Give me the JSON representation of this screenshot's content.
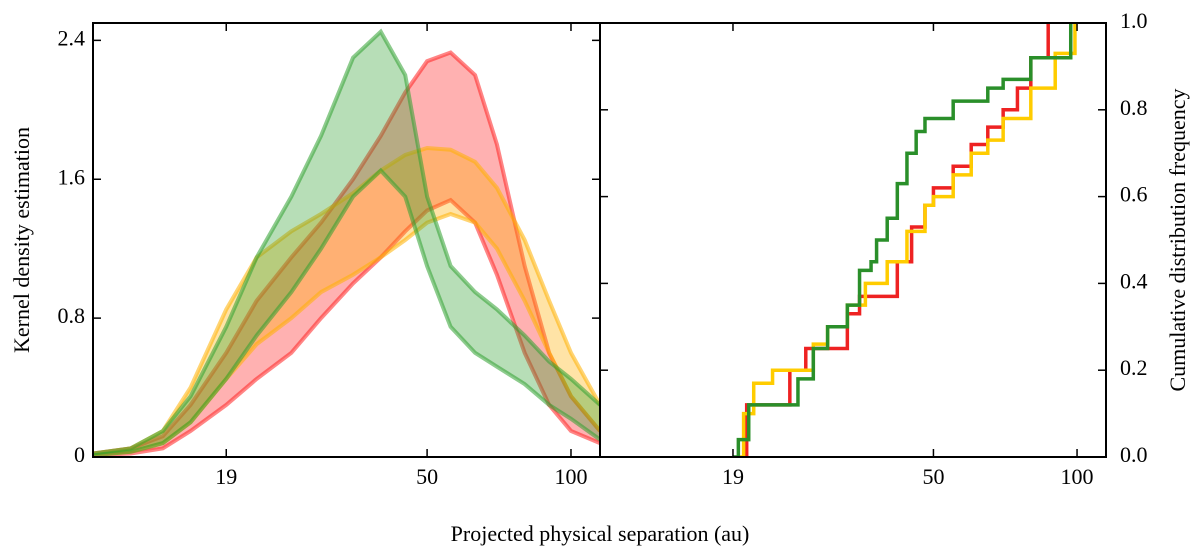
{
  "xlabel": "Projected physical separation (au)",
  "chart_data": [
    {
      "type": "band",
      "ylabel": "Kernel density estimation",
      "xlog": true,
      "xlim": [
        10,
        115
      ],
      "ylim": [
        0,
        2.5
      ],
      "xticks": [
        19,
        50,
        100
      ],
      "yticks": [
        0,
        0.8,
        1.6,
        2.4
      ],
      "x": [
        10,
        12,
        14,
        16,
        19,
        22,
        26,
        30,
        35,
        40,
        45,
        50,
        56,
        63,
        70,
        80,
        90,
        100,
        115
      ],
      "series": [
        {
          "color": "#ff2020",
          "lower": [
            0.01,
            0.02,
            0.05,
            0.15,
            0.3,
            0.45,
            0.6,
            0.8,
            1.0,
            1.15,
            1.3,
            1.42,
            1.48,
            1.35,
            1.05,
            0.6,
            0.3,
            0.15,
            0.08
          ],
          "upper": [
            0.02,
            0.05,
            0.12,
            0.3,
            0.6,
            0.9,
            1.15,
            1.35,
            1.6,
            1.85,
            2.1,
            2.28,
            2.33,
            2.2,
            1.8,
            1.1,
            0.6,
            0.35,
            0.15
          ]
        },
        {
          "color": "#ffb000",
          "lower": [
            0.01,
            0.03,
            0.08,
            0.2,
            0.45,
            0.65,
            0.8,
            0.95,
            1.05,
            1.15,
            1.25,
            1.35,
            1.4,
            1.35,
            1.2,
            0.9,
            0.6,
            0.35,
            0.15
          ],
          "upper": [
            0.02,
            0.05,
            0.15,
            0.4,
            0.85,
            1.15,
            1.3,
            1.4,
            1.52,
            1.65,
            1.74,
            1.78,
            1.77,
            1.7,
            1.55,
            1.25,
            0.9,
            0.6,
            0.3
          ]
        },
        {
          "color": "#30a030",
          "lower": [
            0.01,
            0.03,
            0.08,
            0.2,
            0.45,
            0.7,
            0.95,
            1.2,
            1.5,
            1.65,
            1.5,
            1.1,
            0.75,
            0.6,
            0.52,
            0.42,
            0.3,
            0.22,
            0.1
          ],
          "upper": [
            0.02,
            0.05,
            0.15,
            0.35,
            0.75,
            1.15,
            1.5,
            1.85,
            2.3,
            2.45,
            2.2,
            1.5,
            1.1,
            0.95,
            0.85,
            0.7,
            0.55,
            0.45,
            0.3
          ]
        }
      ]
    },
    {
      "type": "step",
      "ylabel": "Cumulative distribution frequency",
      "xlog": true,
      "xlim": [
        10,
        115
      ],
      "ylim": [
        0,
        1
      ],
      "xticks": [
        19,
        50,
        100
      ],
      "yticks": [
        {
          "value": 0,
          "label": "0.0"
        },
        0.2,
        0.4,
        0.6,
        0.8,
        {
          "value": 1,
          "label": "1.0"
        }
      ],
      "series": [
        {
          "color": "#ee2222",
          "x": [
            20,
            20.3,
            23,
            25,
            27,
            30,
            33,
            35,
            37,
            42,
            45,
            48,
            50,
            55,
            60,
            65,
            70,
            75,
            80,
            87
          ],
          "values": [
            0,
            0.12,
            0.12,
            0.2,
            0.25,
            0.25,
            0.33,
            0.37,
            0.37,
            0.45,
            0.53,
            0.58,
            0.62,
            0.67,
            0.72,
            0.76,
            0.8,
            0.85,
            0.92,
            1.0
          ]
        },
        {
          "color": "#ffcc00",
          "x": [
            19.5,
            20,
            21,
            23,
            25,
            28,
            30,
            33,
            36,
            40,
            44,
            48,
            50,
            55,
            60,
            65,
            70,
            80,
            90,
            99
          ],
          "values": [
            0,
            0.1,
            0.17,
            0.2,
            0.2,
            0.26,
            0.3,
            0.35,
            0.4,
            0.45,
            0.52,
            0.58,
            0.6,
            0.65,
            0.7,
            0.73,
            0.78,
            0.85,
            0.93,
            1.0
          ]
        },
        {
          "color": "#2a8f2a",
          "x": [
            19,
            19.5,
            20.5,
            24,
            26,
            28,
            30,
            33,
            35,
            37,
            38,
            40,
            42,
            44,
            46,
            48,
            55,
            65,
            70,
            80,
            97
          ],
          "values": [
            0,
            0.04,
            0.12,
            0.12,
            0.18,
            0.25,
            0.3,
            0.35,
            0.43,
            0.45,
            0.5,
            0.55,
            0.63,
            0.7,
            0.75,
            0.78,
            0.82,
            0.85,
            0.87,
            0.92,
            1.0
          ]
        }
      ]
    }
  ]
}
